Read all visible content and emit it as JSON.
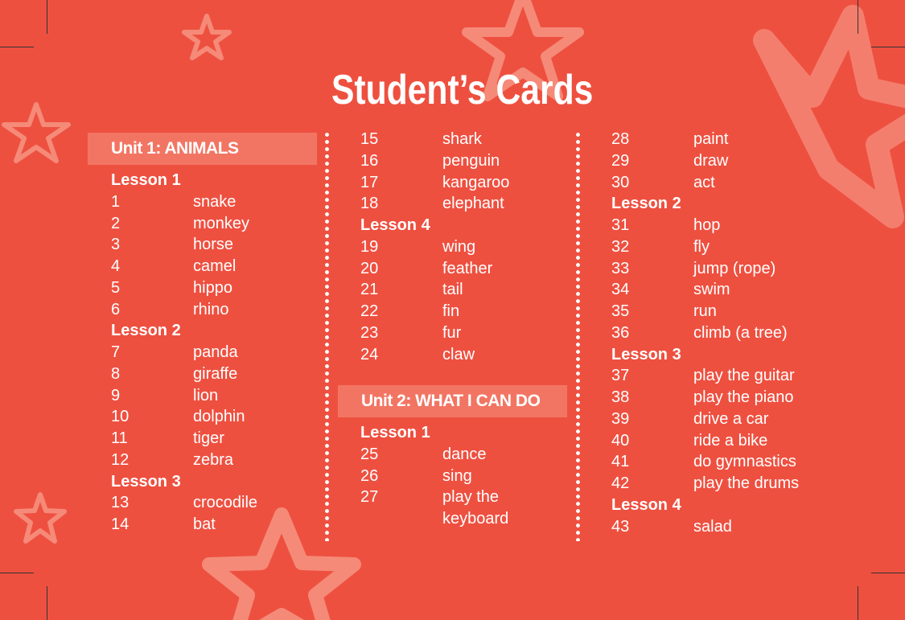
{
  "title": "Student’s Cards",
  "colors": {
    "background": "#ee5040",
    "band": "#f27563",
    "text": "#ffffff",
    "star_outline": "#f58a78"
  },
  "columns": [
    {
      "unit": "Unit 1: ANIMALS",
      "rows": [
        {
          "lesson": "Lesson 1"
        },
        {
          "num": "1",
          "word": "snake"
        },
        {
          "num": "2",
          "word": "monkey"
        },
        {
          "num": "3",
          "word": "horse"
        },
        {
          "num": "4",
          "word": "camel"
        },
        {
          "num": "5",
          "word": "hippo"
        },
        {
          "num": "6",
          "word": "rhino"
        },
        {
          "lesson": "Lesson 2"
        },
        {
          "num": "7",
          "word": "panda"
        },
        {
          "num": "8",
          "word": "giraffe"
        },
        {
          "num": "9",
          "word": "lion"
        },
        {
          "num": "10",
          "word": "dolphin"
        },
        {
          "num": "11",
          "word": "tiger"
        },
        {
          "num": "12",
          "word": "zebra"
        },
        {
          "lesson": "Lesson 3"
        },
        {
          "num": "13",
          "word": "crocodile"
        },
        {
          "num": "14",
          "word": "bat"
        }
      ]
    },
    {
      "rows": [
        {
          "num": "15",
          "word": "shark"
        },
        {
          "num": "16",
          "word": "penguin"
        },
        {
          "num": "17",
          "word": "kangaroo"
        },
        {
          "num": "18",
          "word": "elephant"
        },
        {
          "lesson": "Lesson 4"
        },
        {
          "num": "19",
          "word": "wing"
        },
        {
          "num": "20",
          "word": "feather"
        },
        {
          "num": "21",
          "word": "tail"
        },
        {
          "num": "22",
          "word": "fin"
        },
        {
          "num": "23",
          "word": "fur"
        },
        {
          "num": "24",
          "word": "claw"
        }
      ],
      "unit": "Unit 2: WHAT I CAN DO",
      "rows_after": [
        {
          "lesson": "Lesson 1"
        },
        {
          "num": "25",
          "word": "dance"
        },
        {
          "num": "26",
          "word": "sing"
        },
        {
          "num": "27",
          "word": "play the"
        },
        {
          "num": "",
          "word": "keyboard"
        }
      ]
    },
    {
      "rows": [
        {
          "num": "28",
          "word": "paint"
        },
        {
          "num": "29",
          "word": "draw"
        },
        {
          "num": "30",
          "word": "act"
        },
        {
          "lesson": "Lesson 2"
        },
        {
          "num": "31",
          "word": "hop"
        },
        {
          "num": "32",
          "word": "fly"
        },
        {
          "num": "33",
          "word": "jump (rope)"
        },
        {
          "num": "34",
          "word": "swim"
        },
        {
          "num": "35",
          "word": "run"
        },
        {
          "num": "36",
          "word": "climb (a tree)"
        },
        {
          "lesson": "Lesson 3"
        },
        {
          "num": "37",
          "word": "play the guitar"
        },
        {
          "num": "38",
          "word": "play the piano"
        },
        {
          "num": "39",
          "word": "drive a car"
        },
        {
          "num": "40",
          "word": "ride a bike"
        },
        {
          "num": "41",
          "word": "do gymnastics"
        },
        {
          "num": "42",
          "word": "play the drums"
        },
        {
          "lesson": "Lesson 4"
        },
        {
          "num": "43",
          "word": "salad"
        }
      ]
    }
  ]
}
